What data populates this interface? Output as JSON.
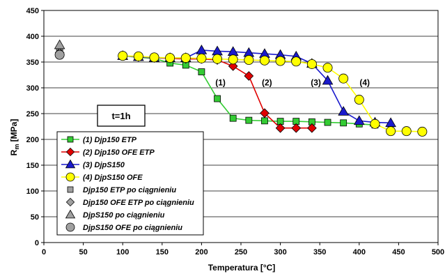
{
  "chart_data": {
    "type": "line",
    "xlabel": "Temperatura [°C]",
    "ylabel": "R",
    "ylabel_sub": "m",
    "ylabel_unit": " [MPa]",
    "xlim": [
      0,
      500
    ],
    "ylim": [
      0,
      450
    ],
    "xticks": [
      0,
      50,
      100,
      150,
      200,
      250,
      300,
      350,
      400,
      450,
      500
    ],
    "yticks": [
      0,
      50,
      100,
      150,
      200,
      250,
      300,
      350,
      400,
      450
    ],
    "grid": "horizontal",
    "legend_position": "bottom-left",
    "condition_label": "t=1h",
    "series": [
      {
        "name": "(1) Djp150 ETP",
        "color": "#33cc33",
        "marker": "square",
        "x": [
          100,
          120,
          140,
          160,
          180,
          200,
          220,
          240,
          260,
          280,
          300,
          320,
          340,
          360,
          380,
          400,
          420
        ],
        "y": [
          362,
          359,
          357,
          348,
          344,
          331,
          279,
          241,
          237,
          236,
          235,
          235,
          234,
          233,
          232,
          230,
          228
        ]
      },
      {
        "name": "(2) Djp150 OFE ETP",
        "color": "#e00000",
        "marker": "diamond",
        "x": [
          100,
          120,
          140,
          160,
          180,
          200,
          220,
          240,
          260,
          280,
          300,
          320,
          340
        ],
        "y": [
          362,
          360,
          358,
          357,
          356,
          356,
          354,
          342,
          323,
          251,
          222,
          222,
          222
        ]
      },
      {
        "name": "(3) DjpS150",
        "color": "#1a1acc",
        "marker": "triangle",
        "x": [
          100,
          120,
          140,
          160,
          180,
          200,
          220,
          240,
          260,
          280,
          300,
          320,
          340,
          360,
          380,
          400,
          420,
          440
        ],
        "y": [
          362,
          360,
          358,
          358,
          358,
          373,
          371,
          370,
          368,
          366,
          364,
          361,
          347,
          314,
          254,
          236,
          233,
          232
        ]
      },
      {
        "name": "(4) DjpS150 OFE",
        "color": "#ffff00",
        "marker": "circle",
        "x": [
          100,
          120,
          140,
          160,
          180,
          200,
          220,
          240,
          260,
          280,
          300,
          320,
          340,
          360,
          380,
          400,
          420,
          440,
          460,
          480
        ],
        "y": [
          362,
          361,
          359,
          358,
          358,
          357,
          356,
          355,
          354,
          353,
          352,
          351,
          346,
          339,
          318,
          277,
          230,
          216,
          216,
          215
        ]
      },
      {
        "name": "Djp150 ETP po ciągnieniu",
        "color": "#a0a0a0",
        "marker": "square",
        "x": [
          20
        ],
        "y": [
          373
        ]
      },
      {
        "name": "Djp150 OFE ETP po ciągnieniu",
        "color": "#a0a0a0",
        "marker": "diamond",
        "x": [
          20
        ],
        "y": [
          368
        ]
      },
      {
        "name": "DjpS150 po ciągnieniu",
        "color": "#a0a0a0",
        "marker": "triangle",
        "x": [
          20
        ],
        "y": [
          383
        ]
      },
      {
        "name": "DjpS150 OFE po ciągnieniu",
        "color": "#a0a0a0",
        "marker": "circle",
        "x": [
          20
        ],
        "y": [
          364
        ]
      }
    ],
    "annotations": [
      {
        "text": "(1)",
        "x": 224,
        "y": 305
      },
      {
        "text": "(2)",
        "x": 283,
        "y": 305
      },
      {
        "text": "(3)",
        "x": 345,
        "y": 305
      },
      {
        "text": "(4)",
        "x": 407,
        "y": 305
      }
    ]
  }
}
